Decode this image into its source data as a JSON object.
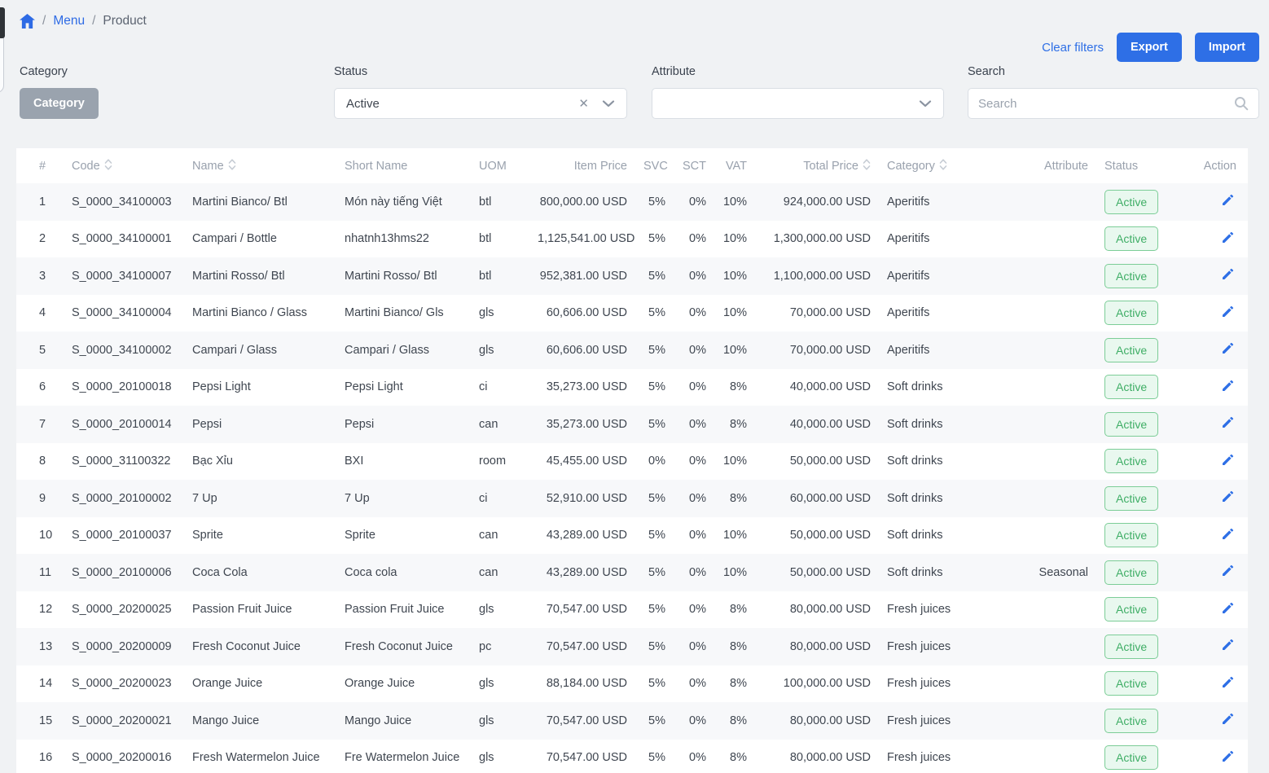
{
  "breadcrumb": {
    "separator": "/",
    "menu_label": "Menu",
    "current_label": "Product"
  },
  "toolbar": {
    "clear_filters_label": "Clear filters",
    "export_label": "Export",
    "import_label": "Import"
  },
  "filters": {
    "category": {
      "label": "Category",
      "button_label": "Category"
    },
    "status": {
      "label": "Status",
      "value": "Active"
    },
    "attribute": {
      "label": "Attribute",
      "value": ""
    },
    "search": {
      "label": "Search",
      "placeholder": "Search"
    }
  },
  "colors": {
    "accent_blue": "#2e6fe6",
    "link_blue": "#2e6be5",
    "badge_green_bg": "#e9f8ef",
    "badge_green_border": "#7ccd97",
    "badge_green_text": "#3fae66",
    "category_button_gray": "#9aa3ae"
  },
  "table": {
    "columns": [
      {
        "key": "num",
        "label": "#",
        "align": "left",
        "sortable": false
      },
      {
        "key": "code",
        "label": "Code",
        "align": "left",
        "sortable": true
      },
      {
        "key": "name",
        "label": "Name",
        "align": "left",
        "sortable": true
      },
      {
        "key": "short_name",
        "label": "Short Name",
        "align": "left",
        "sortable": false
      },
      {
        "key": "uom",
        "label": "UOM",
        "align": "left",
        "sortable": false
      },
      {
        "key": "item_price",
        "label": "Item Price",
        "align": "right",
        "sortable": false
      },
      {
        "key": "svc",
        "label": "SVC",
        "align": "right",
        "sortable": false
      },
      {
        "key": "sct",
        "label": "SCT",
        "align": "right",
        "sortable": false
      },
      {
        "key": "vat",
        "label": "VAT",
        "align": "right",
        "sortable": false
      },
      {
        "key": "total_price",
        "label": "Total Price",
        "align": "right",
        "sortable": true
      },
      {
        "key": "category",
        "label": "Category",
        "align": "left",
        "sortable": true
      },
      {
        "key": "attribute",
        "label": "Attribute",
        "align": "right",
        "sortable": false
      },
      {
        "key": "status",
        "label": "Status",
        "align": "left",
        "sortable": false
      },
      {
        "key": "action",
        "label": "Action",
        "align": "right",
        "sortable": false
      }
    ],
    "rows": [
      {
        "num": "1",
        "code": "S_0000_34100003",
        "name": "Martini Bianco/ Btl",
        "short_name": "Món này tiếng Việt",
        "uom": "btl",
        "item_price": "800,000.00 USD",
        "svc": "5%",
        "sct": "0%",
        "vat": "10%",
        "total_price": "924,000.00 USD",
        "category": "Aperitifs",
        "attribute": "",
        "status": "Active"
      },
      {
        "num": "2",
        "code": "S_0000_34100001",
        "name": "Campari / Bottle",
        "short_name": "nhatnh13hms22",
        "uom": "btl",
        "item_price": "1,125,541.00 USD",
        "svc": "5%",
        "sct": "0%",
        "vat": "10%",
        "total_price": "1,300,000.00 USD",
        "category": "Aperitifs",
        "attribute": "",
        "status": "Active"
      },
      {
        "num": "3",
        "code": "S_0000_34100007",
        "name": "Martini Rosso/ Btl",
        "short_name": "Martini Rosso/ Btl",
        "uom": "btl",
        "item_price": "952,381.00 USD",
        "svc": "5%",
        "sct": "0%",
        "vat": "10%",
        "total_price": "1,100,000.00 USD",
        "category": "Aperitifs",
        "attribute": "",
        "status": "Active"
      },
      {
        "num": "4",
        "code": "S_0000_34100004",
        "name": "Martini Bianco / Glass",
        "short_name": "Martini Bianco/ Gls",
        "uom": "gls",
        "item_price": "60,606.00 USD",
        "svc": "5%",
        "sct": "0%",
        "vat": "10%",
        "total_price": "70,000.00 USD",
        "category": "Aperitifs",
        "attribute": "",
        "status": "Active"
      },
      {
        "num": "5",
        "code": "S_0000_34100002",
        "name": "Campari / Glass",
        "short_name": "Campari / Glass",
        "uom": "gls",
        "item_price": "60,606.00 USD",
        "svc": "5%",
        "sct": "0%",
        "vat": "10%",
        "total_price": "70,000.00 USD",
        "category": "Aperitifs",
        "attribute": "",
        "status": "Active"
      },
      {
        "num": "6",
        "code": "S_0000_20100018",
        "name": "Pepsi Light",
        "short_name": "Pepsi Light",
        "uom": "ci",
        "item_price": "35,273.00 USD",
        "svc": "5%",
        "sct": "0%",
        "vat": "8%",
        "total_price": "40,000.00 USD",
        "category": "Soft drinks",
        "attribute": "",
        "status": "Active"
      },
      {
        "num": "7",
        "code": "S_0000_20100014",
        "name": "Pepsi",
        "short_name": "Pepsi",
        "uom": "can",
        "item_price": "35,273.00 USD",
        "svc": "5%",
        "sct": "0%",
        "vat": "8%",
        "total_price": "40,000.00 USD",
        "category": "Soft drinks",
        "attribute": "",
        "status": "Active"
      },
      {
        "num": "8",
        "code": "S_0000_31100322",
        "name": "Bạc Xỉu",
        "short_name": "BXI",
        "uom": "room",
        "item_price": "45,455.00 USD",
        "svc": "0%",
        "sct": "0%",
        "vat": "10%",
        "total_price": "50,000.00 USD",
        "category": "Soft drinks",
        "attribute": "",
        "status": "Active"
      },
      {
        "num": "9",
        "code": "S_0000_20100002",
        "name": "7 Up",
        "short_name": "7 Up",
        "uom": "ci",
        "item_price": "52,910.00 USD",
        "svc": "5%",
        "sct": "0%",
        "vat": "8%",
        "total_price": "60,000.00 USD",
        "category": "Soft drinks",
        "attribute": "",
        "status": "Active"
      },
      {
        "num": "10",
        "code": "S_0000_20100037",
        "name": "Sprite",
        "short_name": "Sprite",
        "uom": "can",
        "item_price": "43,289.00 USD",
        "svc": "5%",
        "sct": "0%",
        "vat": "10%",
        "total_price": "50,000.00 USD",
        "category": "Soft drinks",
        "attribute": "",
        "status": "Active"
      },
      {
        "num": "11",
        "code": "S_0000_20100006",
        "name": "Coca Cola",
        "short_name": "Coca cola",
        "uom": "can",
        "item_price": "43,289.00 USD",
        "svc": "5%",
        "sct": "0%",
        "vat": "10%",
        "total_price": "50,000.00 USD",
        "category": "Soft drinks",
        "attribute": "Seasonal",
        "status": "Active"
      },
      {
        "num": "12",
        "code": "S_0000_20200025",
        "name": "Passion Fruit Juice",
        "short_name": "Passion Fruit Juice",
        "uom": "gls",
        "item_price": "70,547.00 USD",
        "svc": "5%",
        "sct": "0%",
        "vat": "8%",
        "total_price": "80,000.00 USD",
        "category": "Fresh juices",
        "attribute": "",
        "status": "Active"
      },
      {
        "num": "13",
        "code": "S_0000_20200009",
        "name": "Fresh Coconut Juice",
        "short_name": "Fresh Coconut Juice",
        "uom": "pc",
        "item_price": "70,547.00 USD",
        "svc": "5%",
        "sct": "0%",
        "vat": "8%",
        "total_price": "80,000.00 USD",
        "category": "Fresh juices",
        "attribute": "",
        "status": "Active"
      },
      {
        "num": "14",
        "code": "S_0000_20200023",
        "name": "Orange Juice",
        "short_name": "Orange Juice",
        "uom": "gls",
        "item_price": "88,184.00 USD",
        "svc": "5%",
        "sct": "0%",
        "vat": "8%",
        "total_price": "100,000.00 USD",
        "category": "Fresh juices",
        "attribute": "",
        "status": "Active"
      },
      {
        "num": "15",
        "code": "S_0000_20200021",
        "name": "Mango Juice",
        "short_name": "Mango Juice",
        "uom": "gls",
        "item_price": "70,547.00 USD",
        "svc": "5%",
        "sct": "0%",
        "vat": "8%",
        "total_price": "80,000.00 USD",
        "category": "Fresh juices",
        "attribute": "",
        "status": "Active"
      },
      {
        "num": "16",
        "code": "S_0000_20200016",
        "name": "Fresh Watermelon Juice",
        "short_name": "Fre Watermelon Juice",
        "uom": "gls",
        "item_price": "70,547.00 USD",
        "svc": "5%",
        "sct": "0%",
        "vat": "8%",
        "total_price": "80,000.00 USD",
        "category": "Fresh juices",
        "attribute": "",
        "status": "Active"
      }
    ]
  }
}
